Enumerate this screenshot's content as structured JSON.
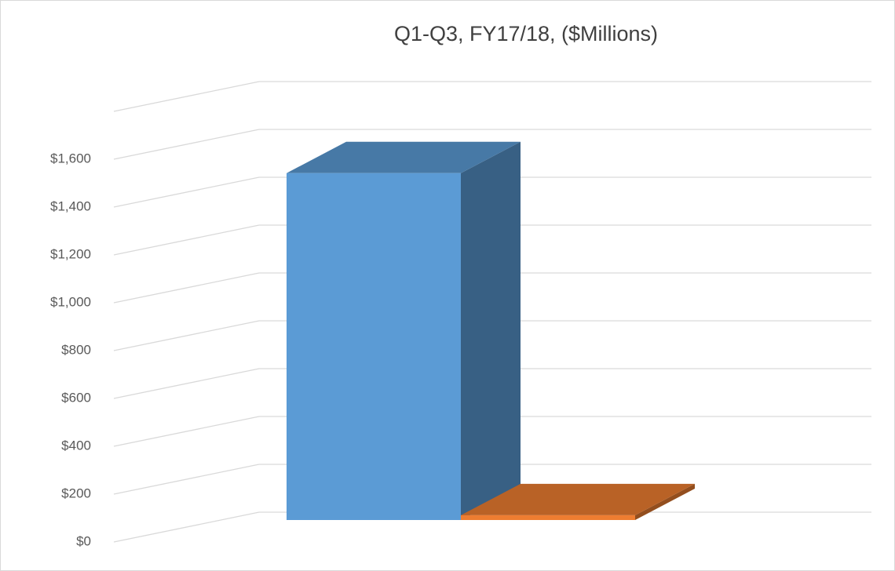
{
  "chart_data": {
    "type": "bar3d",
    "title": "Q1-Q3, FY17/18, ($Millions)",
    "categories": [
      null,
      null
    ],
    "values": [
      1450,
      20
    ],
    "colors": [
      "#5b9bd5",
      "#ed7d31"
    ],
    "ylim": [
      0,
      1800
    ],
    "yticks": [
      {
        "value": 0,
        "label": "$0"
      },
      {
        "value": 200,
        "label": "$200"
      },
      {
        "value": 400,
        "label": "$400"
      },
      {
        "value": 600,
        "label": "$600"
      },
      {
        "value": 800,
        "label": "$800"
      },
      {
        "value": 1000,
        "label": "$1,000"
      },
      {
        "value": 1200,
        "label": "$1,200"
      },
      {
        "value": 1400,
        "label": "$1,400"
      },
      {
        "value": 1600,
        "label": "$1,600"
      }
    ],
    "grid": true
  }
}
